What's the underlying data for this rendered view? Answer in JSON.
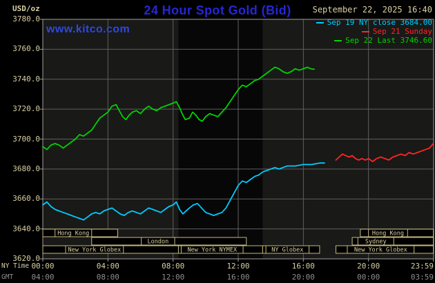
{
  "header": {
    "units_label": "USD/oz",
    "title": "24 Hour Spot Gold (Bid)",
    "datetime": "September 22, 2025 16:40",
    "watermark": "www.kitco.com"
  },
  "legend": [
    {
      "label": "Sep 19 NY close 3684.00",
      "color": "#00ccff"
    },
    {
      "label": "Sep 21 Sunday",
      "color": "#ff2626"
    },
    {
      "label": "Sep 22 Last 3746.60",
      "color": "#00d400"
    }
  ],
  "axes": {
    "ny_time_label": "NY Time",
    "gmt_label": "GMT",
    "x_ticks_ny": [
      "00:00",
      "04:00",
      "08:00",
      "12:00",
      "16:00",
      "20:00",
      "23:59"
    ],
    "x_ticks_gmt": [
      "04:00",
      "08:00",
      "12:00",
      "16:00",
      "20:00",
      "00:00",
      "03:59"
    ],
    "y_ticks": [
      "3780.0",
      "3760.0",
      "3740.0",
      "3720.0",
      "3700.0",
      "3680.0",
      "3660.0",
      "3640.0",
      "3620.0"
    ]
  },
  "colors": {
    "tan": "#d9d0a4",
    "dim_gray": "#8f8f8f",
    "title_blue": "#2626d8",
    "watermark_blue": "#2d49e0",
    "plot_bg": "#191917",
    "band": "#070707",
    "grid": "#606060",
    "border": "#a0a0a0",
    "session_box": "#c9b97a",
    "cyan": "#00ccff",
    "red": "#ff2626",
    "green": "#00d400"
  },
  "chart_data": {
    "type": "line",
    "title": "24 Hour Spot Gold (Bid)",
    "ylabel": "USD/oz",
    "ylim": [
      3620,
      3780
    ],
    "xlim_hours": [
      0,
      24
    ],
    "y_grid_step": 20,
    "x_grid_step_hours": 4,
    "grid": true,
    "legend_position": "top-right",
    "nymex_band_hours": [
      8.33,
      13.5
    ],
    "series": [
      {
        "name": "Sep 19 NY close",
        "color": "#00ccff",
        "close": 3684.0,
        "points": [
          [
            0,
            3656
          ],
          [
            0.25,
            3658
          ],
          [
            0.5,
            3655
          ],
          [
            0.75,
            3653
          ],
          [
            1,
            3652
          ],
          [
            1.25,
            3651
          ],
          [
            1.5,
            3650
          ],
          [
            1.75,
            3649
          ],
          [
            2,
            3648
          ],
          [
            2.25,
            3647
          ],
          [
            2.5,
            3646
          ],
          [
            2.75,
            3648
          ],
          [
            3,
            3650
          ],
          [
            3.25,
            3651
          ],
          [
            3.5,
            3650
          ],
          [
            3.75,
            3652
          ],
          [
            4,
            3653
          ],
          [
            4.25,
            3654
          ],
          [
            4.5,
            3652
          ],
          [
            4.75,
            3650
          ],
          [
            5,
            3649
          ],
          [
            5.25,
            3651
          ],
          [
            5.5,
            3652
          ],
          [
            5.75,
            3651
          ],
          [
            6,
            3650
          ],
          [
            6.25,
            3652
          ],
          [
            6.5,
            3654
          ],
          [
            6.75,
            3653
          ],
          [
            7,
            3652
          ],
          [
            7.25,
            3651
          ],
          [
            7.5,
            3653
          ],
          [
            7.75,
            3655
          ],
          [
            8,
            3656
          ],
          [
            8.2,
            3658
          ],
          [
            8.4,
            3653
          ],
          [
            8.6,
            3650
          ],
          [
            8.8,
            3652
          ],
          [
            9,
            3654
          ],
          [
            9.25,
            3656
          ],
          [
            9.5,
            3657
          ],
          [
            9.75,
            3654
          ],
          [
            10,
            3651
          ],
          [
            10.25,
            3650
          ],
          [
            10.5,
            3649
          ],
          [
            10.75,
            3650
          ],
          [
            11,
            3651
          ],
          [
            11.25,
            3654
          ],
          [
            11.5,
            3659
          ],
          [
            11.75,
            3664
          ],
          [
            12,
            3669
          ],
          [
            12.25,
            3672
          ],
          [
            12.5,
            3671
          ],
          [
            12.75,
            3673
          ],
          [
            13,
            3675
          ],
          [
            13.25,
            3676
          ],
          [
            13.5,
            3678
          ],
          [
            13.75,
            3679
          ],
          [
            14,
            3680
          ],
          [
            14.25,
            3681
          ],
          [
            14.5,
            3680
          ],
          [
            14.75,
            3681
          ],
          [
            15,
            3682
          ],
          [
            15.5,
            3682
          ],
          [
            16,
            3683
          ],
          [
            16.5,
            3683
          ],
          [
            17,
            3684
          ],
          [
            17.3,
            3684
          ]
        ]
      },
      {
        "name": "Sep 21 Sunday",
        "color": "#ff2626",
        "points": [
          [
            18,
            3686
          ],
          [
            18.2,
            3688
          ],
          [
            18.4,
            3690
          ],
          [
            18.6,
            3689
          ],
          [
            18.8,
            3688
          ],
          [
            19,
            3689
          ],
          [
            19.2,
            3687
          ],
          [
            19.4,
            3686
          ],
          [
            19.6,
            3687
          ],
          [
            19.8,
            3686
          ],
          [
            20,
            3687
          ],
          [
            20.25,
            3685
          ],
          [
            20.5,
            3687
          ],
          [
            20.75,
            3688
          ],
          [
            21,
            3687
          ],
          [
            21.25,
            3686
          ],
          [
            21.5,
            3688
          ],
          [
            21.75,
            3689
          ],
          [
            22,
            3690
          ],
          [
            22.25,
            3689
          ],
          [
            22.5,
            3691
          ],
          [
            22.75,
            3690
          ],
          [
            23,
            3691
          ],
          [
            23.25,
            3692
          ],
          [
            23.5,
            3693
          ],
          [
            23.75,
            3694
          ],
          [
            23.98,
            3697
          ]
        ]
      },
      {
        "name": "Sep 22 Last",
        "color": "#00d400",
        "last": 3746.6,
        "points": [
          [
            0,
            3695
          ],
          [
            0.25,
            3693
          ],
          [
            0.5,
            3696
          ],
          [
            0.75,
            3697
          ],
          [
            1,
            3696
          ],
          [
            1.25,
            3694
          ],
          [
            1.5,
            3696
          ],
          [
            1.75,
            3698
          ],
          [
            2,
            3700
          ],
          [
            2.25,
            3703
          ],
          [
            2.5,
            3702
          ],
          [
            2.75,
            3704
          ],
          [
            3,
            3706
          ],
          [
            3.25,
            3710
          ],
          [
            3.5,
            3714
          ],
          [
            3.75,
            3716
          ],
          [
            4,
            3718
          ],
          [
            4.25,
            3722
          ],
          [
            4.5,
            3723
          ],
          [
            4.7,
            3719
          ],
          [
            4.9,
            3715
          ],
          [
            5.1,
            3713
          ],
          [
            5.3,
            3716
          ],
          [
            5.5,
            3718
          ],
          [
            5.75,
            3719
          ],
          [
            6,
            3717
          ],
          [
            6.25,
            3720
          ],
          [
            6.5,
            3722
          ],
          [
            6.75,
            3720
          ],
          [
            7,
            3719
          ],
          [
            7.25,
            3721
          ],
          [
            7.5,
            3722
          ],
          [
            7.75,
            3723
          ],
          [
            8,
            3724
          ],
          [
            8.2,
            3725
          ],
          [
            8.4,
            3721
          ],
          [
            8.6,
            3716
          ],
          [
            8.75,
            3713
          ],
          [
            9,
            3714
          ],
          [
            9.2,
            3718
          ],
          [
            9.4,
            3716
          ],
          [
            9.6,
            3713
          ],
          [
            9.8,
            3712
          ],
          [
            10,
            3715
          ],
          [
            10.25,
            3717
          ],
          [
            10.5,
            3716
          ],
          [
            10.75,
            3715
          ],
          [
            11,
            3718
          ],
          [
            11.25,
            3721
          ],
          [
            11.5,
            3725
          ],
          [
            11.75,
            3729
          ],
          [
            12,
            3733
          ],
          [
            12.25,
            3736
          ],
          [
            12.5,
            3735
          ],
          [
            12.75,
            3737
          ],
          [
            13,
            3739
          ],
          [
            13.25,
            3740
          ],
          [
            13.5,
            3742
          ],
          [
            13.75,
            3744
          ],
          [
            14,
            3746
          ],
          [
            14.25,
            3748
          ],
          [
            14.5,
            3747
          ],
          [
            14.75,
            3745
          ],
          [
            15,
            3744
          ],
          [
            15.25,
            3745
          ],
          [
            15.5,
            3747
          ],
          [
            15.75,
            3746
          ],
          [
            16,
            3747
          ],
          [
            16.25,
            3748
          ],
          [
            16.45,
            3747
          ],
          [
            16.67,
            3746.6
          ]
        ]
      }
    ],
    "sessions": [
      {
        "row": 0,
        "start": 0,
        "end": 4.6,
        "label": "Hong Kong",
        "label_start": 0.75,
        "label_end": 3.0
      },
      {
        "row": 0,
        "start": 19.5,
        "end": 23.983,
        "label": "Hong Kong",
        "label_start": 20.0,
        "label_end": 22.4
      },
      {
        "row": 1,
        "start": 3.0,
        "end": 12.5,
        "label": "London",
        "label_start": 6.05,
        "label_end": 8.1
      },
      {
        "row": 1,
        "start": 19.0,
        "end": 23.983,
        "label": "Sydney",
        "label_start": 19.35,
        "label_end": 21.55
      },
      {
        "row": 2,
        "start": 0,
        "end": 8.33,
        "label": "New York Globex",
        "label_start": 1.4,
        "label_end": 4.95
      },
      {
        "row": 2,
        "start": 8.33,
        "end": 13.5,
        "label": "New York NYMEX",
        "label_start": 8.5,
        "label_end": 12.3
      },
      {
        "row": 2,
        "start": 13.5,
        "end": 17.0,
        "label": "NY Globex",
        "label_start": 13.7,
        "label_end": 16.35
      },
      {
        "row": 2,
        "start": 18.0,
        "end": 23.983,
        "label": "New York Globex",
        "label_start": 18.7,
        "label_end": 22.8
      }
    ]
  }
}
